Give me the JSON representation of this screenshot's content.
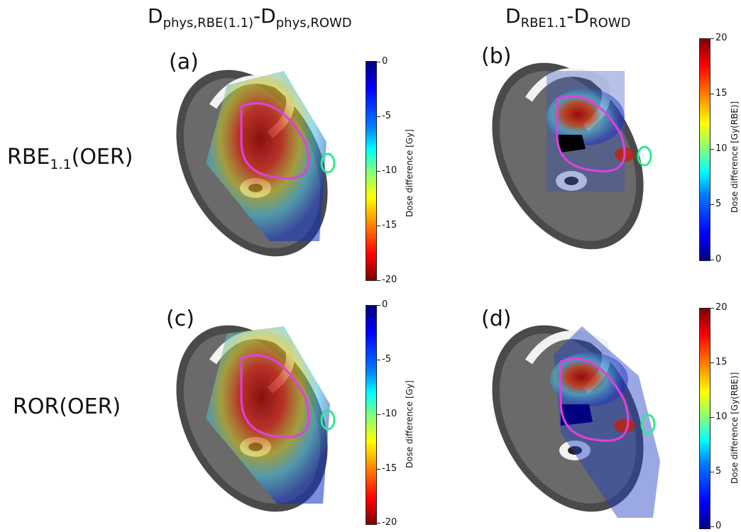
{
  "column_titles": {
    "left": {
      "base": "D",
      "sub1": "phys,RBE(1.1)",
      "dash": "-D",
      "sub2": "phys,ROWD"
    },
    "right": {
      "base": "D",
      "sub1": "RBE1.1",
      "dash": "-D",
      "sub2": "ROWD"
    }
  },
  "row_labels": {
    "top": {
      "base": "RBE",
      "sub": "1.1",
      "tail": "(OER)"
    },
    "bottom": {
      "text": "ROR(OER)"
    }
  },
  "panels": {
    "a": "(a)",
    "b": "(b)",
    "c": "(c)",
    "d": "(d)"
  },
  "colorbars": {
    "physical": {
      "label": "Dose difference [Gy]",
      "ticks": [
        "0",
        "-5",
        "-10",
        "-15",
        "-20"
      ]
    },
    "rbe": {
      "label": "Dose difference [Gy(RBE)]",
      "ticks": [
        "20",
        "15",
        "10",
        "5",
        "0"
      ]
    }
  },
  "colors": {
    "target_contour": "#e040e0",
    "oar_contour": "#30e890",
    "ct_bone": "#f2f2f2",
    "ct_soft": "#6a6a6a"
  }
}
